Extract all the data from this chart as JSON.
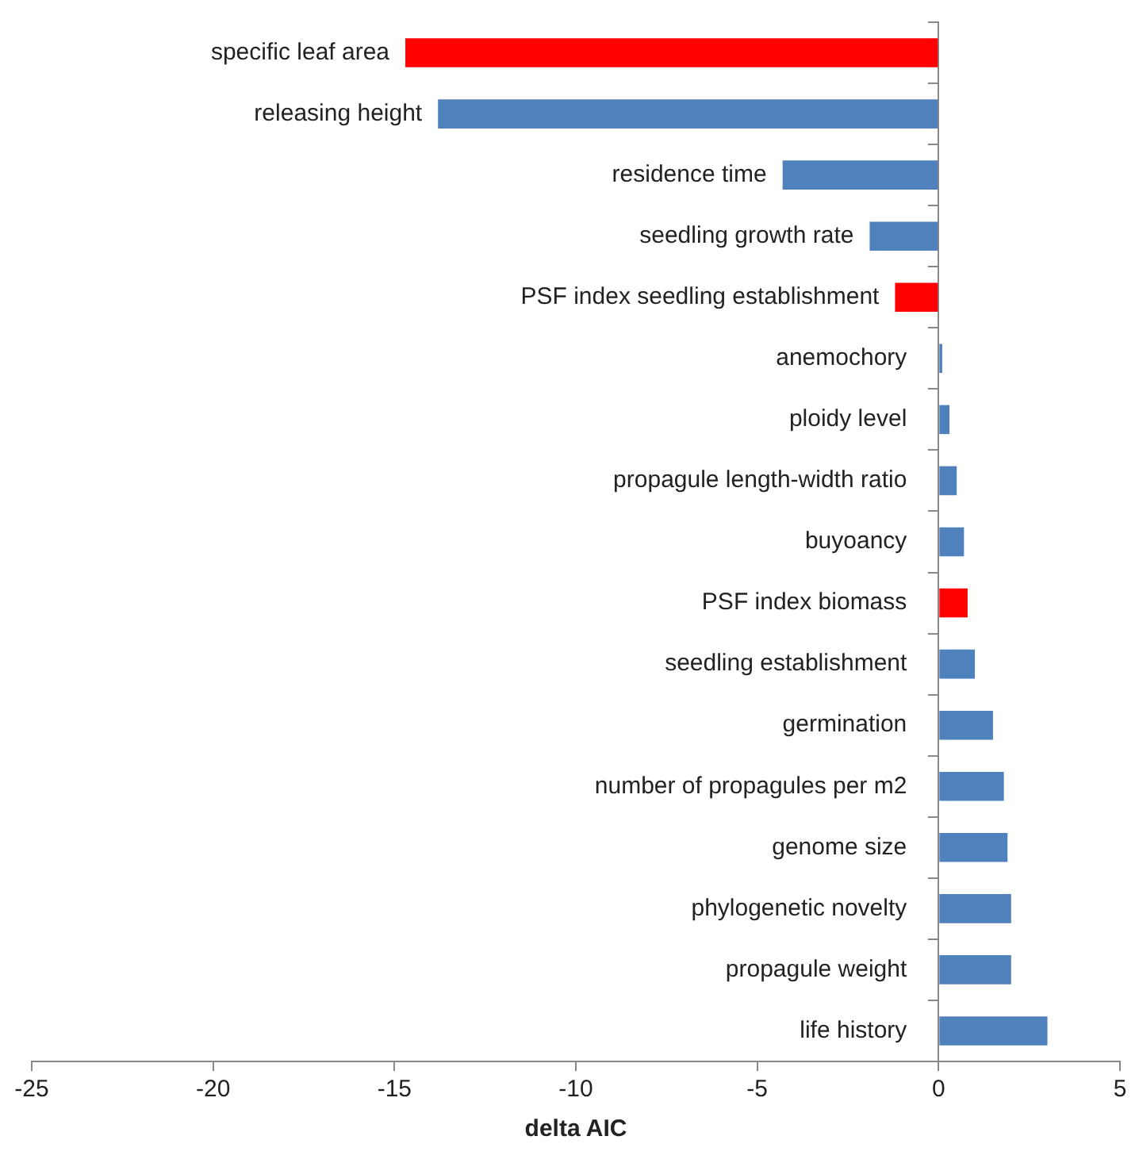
{
  "chart_data": {
    "type": "bar",
    "orientation": "horizontal",
    "xlabel": "delta AIC",
    "categories": [
      "specific leaf area",
      "releasing height",
      "residence time",
      "seedling growth rate",
      "PSF index seedling establishment",
      "anemochory",
      "ploidy level",
      "propagule length-width ratio",
      "buyoancy",
      "PSF index biomass",
      "seedling establishment",
      "germination",
      "number of propagules per m2",
      "genome size",
      "phylogenetic novelty",
      "propagule weight",
      "life history"
    ],
    "values": [
      -14.7,
      -13.8,
      -4.3,
      -1.9,
      -1.2,
      0.1,
      0.3,
      0.5,
      0.7,
      0.8,
      1.0,
      1.5,
      1.8,
      1.9,
      2.0,
      2.0,
      3.0
    ],
    "colors": [
      "#ff0000",
      "#4f81bd",
      "#4f81bd",
      "#4f81bd",
      "#ff0000",
      "#4f81bd",
      "#4f81bd",
      "#4f81bd",
      "#4f81bd",
      "#ff0000",
      "#4f81bd",
      "#4f81bd",
      "#4f81bd",
      "#4f81bd",
      "#4f81bd",
      "#4f81bd",
      "#4f81bd"
    ],
    "xlim": [
      -25,
      5
    ],
    "xticks": [
      -25,
      -20,
      -15,
      -10,
      -5,
      0,
      5
    ],
    "tick_labels": "x",
    "grid": false,
    "legend": false
  }
}
